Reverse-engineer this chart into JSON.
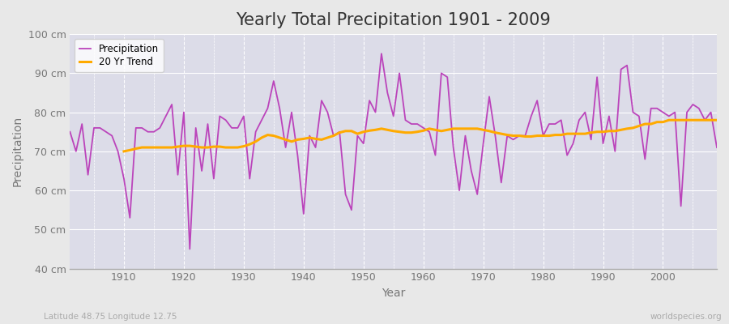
{
  "title": "Yearly Total Precipitation 1901 - 2009",
  "xlabel": "Year",
  "ylabel": "Precipitation",
  "subtitle_left": "Latitude 48.75 Longitude 12.75",
  "subtitle_right": "worldspecies.org",
  "ylim": [
    40,
    100
  ],
  "ytick_labels": [
    "40 cm",
    "50 cm",
    "60 cm",
    "70 cm",
    "80 cm",
    "90 cm",
    "100 cm"
  ],
  "ytick_values": [
    40,
    50,
    60,
    70,
    80,
    90,
    100
  ],
  "years": [
    1901,
    1902,
    1903,
    1904,
    1905,
    1906,
    1907,
    1908,
    1909,
    1910,
    1911,
    1912,
    1913,
    1914,
    1915,
    1916,
    1917,
    1918,
    1919,
    1920,
    1921,
    1922,
    1923,
    1924,
    1925,
    1926,
    1927,
    1928,
    1929,
    1930,
    1931,
    1932,
    1933,
    1934,
    1935,
    1936,
    1937,
    1938,
    1939,
    1940,
    1941,
    1942,
    1943,
    1944,
    1945,
    1946,
    1947,
    1948,
    1949,
    1950,
    1951,
    1952,
    1953,
    1954,
    1955,
    1956,
    1957,
    1958,
    1959,
    1960,
    1961,
    1962,
    1963,
    1964,
    1965,
    1966,
    1967,
    1968,
    1969,
    1970,
    1971,
    1972,
    1973,
    1974,
    1975,
    1976,
    1977,
    1978,
    1979,
    1980,
    1981,
    1982,
    1983,
    1984,
    1985,
    1986,
    1987,
    1988,
    1989,
    1990,
    1991,
    1992,
    1993,
    1994,
    1995,
    1996,
    1997,
    1998,
    1999,
    2000,
    2001,
    2002,
    2003,
    2004,
    2005,
    2006,
    2007,
    2008,
    2009
  ],
  "precipitation": [
    75,
    70,
    77,
    64,
    76,
    76,
    75,
    74,
    70,
    63,
    53,
    76,
    76,
    75,
    75,
    76,
    79,
    82,
    64,
    80,
    45,
    76,
    65,
    77,
    63,
    79,
    78,
    76,
    76,
    79,
    63,
    75,
    78,
    81,
    88,
    81,
    71,
    80,
    69,
    54,
    74,
    71,
    83,
    80,
    74,
    75,
    59,
    55,
    74,
    72,
    83,
    80,
    95,
    85,
    79,
    90,
    78,
    77,
    77,
    76,
    75,
    69,
    90,
    89,
    71,
    60,
    74,
    65,
    59,
    72,
    84,
    74,
    62,
    74,
    73,
    74,
    74,
    79,
    83,
    74,
    77,
    77,
    78,
    69,
    72,
    78,
    80,
    73,
    89,
    72,
    79,
    70,
    91,
    92,
    80,
    79,
    68,
    81,
    81,
    80,
    79,
    80,
    56,
    80,
    82,
    81,
    78,
    80,
    71
  ],
  "trend_years": [
    1910,
    1911,
    1912,
    1913,
    1914,
    1915,
    1916,
    1917,
    1918,
    1919,
    1920,
    1921,
    1922,
    1923,
    1924,
    1925,
    1926,
    1927,
    1928,
    1929,
    1930,
    1931,
    1932,
    1933,
    1934,
    1935,
    1936,
    1937,
    1938,
    1939,
    1940,
    1941,
    1942,
    1943,
    1944,
    1945,
    1946,
    1947,
    1948,
    1949,
    1950,
    1951,
    1952,
    1953,
    1954,
    1955,
    1956,
    1957,
    1958,
    1959,
    1960,
    1961,
    1962,
    1963,
    1964,
    1965,
    1966,
    1967,
    1968,
    1969,
    1970,
    1971,
    1972,
    1973,
    1974,
    1975,
    1976,
    1977,
    1978,
    1979,
    1980,
    1981,
    1982,
    1983,
    1984,
    1985,
    1986,
    1987,
    1988,
    1989,
    1990,
    1991,
    1992,
    1993,
    1994,
    1995,
    1996,
    1997,
    1998,
    1999,
    2000,
    2001,
    2002,
    2003,
    2004,
    2005,
    2006,
    2007,
    2008,
    2009
  ],
  "trend": [
    70.0,
    70.3,
    70.7,
    71.0,
    71.0,
    71.0,
    71.0,
    71.0,
    71.0,
    71.2,
    71.4,
    71.4,
    71.2,
    71.0,
    71.0,
    71.2,
    71.2,
    71.0,
    71.0,
    71.0,
    71.3,
    71.8,
    72.5,
    73.5,
    74.2,
    74.0,
    73.5,
    73.0,
    72.5,
    73.0,
    73.2,
    73.5,
    73.2,
    73.0,
    73.5,
    74.0,
    74.8,
    75.2,
    75.2,
    74.5,
    75.0,
    75.3,
    75.5,
    75.8,
    75.5,
    75.2,
    75.0,
    74.8,
    74.8,
    75.0,
    75.3,
    75.8,
    75.5,
    75.2,
    75.5,
    75.8,
    75.8,
    75.8,
    75.8,
    75.8,
    75.5,
    75.2,
    74.8,
    74.5,
    74.2,
    74.0,
    74.0,
    73.8,
    73.8,
    74.0,
    74.0,
    74.0,
    74.2,
    74.2,
    74.5,
    74.5,
    74.5,
    74.5,
    74.8,
    75.0,
    75.0,
    75.2,
    75.2,
    75.5,
    75.8,
    76.0,
    76.5,
    77.0,
    77.0,
    77.5,
    77.5,
    78.0,
    78.0,
    78.0,
    78.0,
    78.0,
    78.0,
    78.0,
    78.0,
    78.0
  ],
  "precip_color": "#bb44bb",
  "trend_color": "#ffaa00",
  "bg_color": "#e8e8e8",
  "plot_bg_color": "#dcdce8",
  "grid_color": "#ffffff",
  "title_fontsize": 15,
  "label_fontsize": 10,
  "tick_fontsize": 9,
  "xticks": [
    1910,
    1920,
    1930,
    1940,
    1950,
    1960,
    1970,
    1980,
    1990,
    2000
  ]
}
